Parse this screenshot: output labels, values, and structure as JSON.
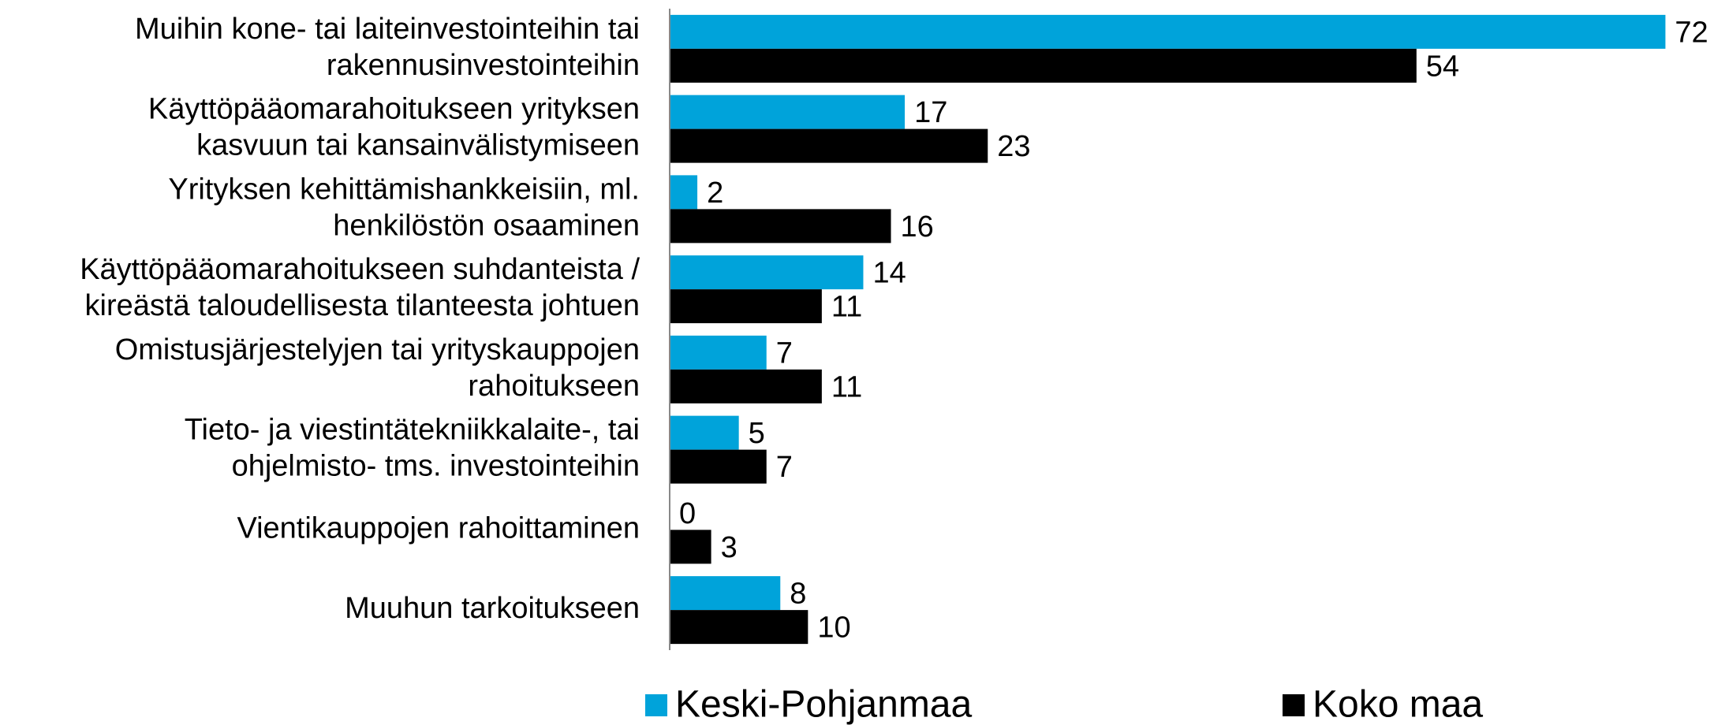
{
  "chart_data": {
    "type": "bar",
    "orientation": "horizontal",
    "categories": [
      [
        "Muihin kone- tai laiteinvestointeihin tai",
        "rakennusinvestointeihin"
      ],
      [
        "Käyttöpääomarahoitukseen yrityksen",
        "kasvuun tai kansainvälistymiseen"
      ],
      [
        "Yrityksen kehittämishankkeisiin, ml.",
        "henkilöstön osaaminen"
      ],
      [
        "Käyttöpääomarahoitukseen suhdanteista /",
        "kireästä taloudellisesta tilanteesta johtuen"
      ],
      [
        "Omistusjärjestelyjen tai yrityskauppojen",
        "rahoitukseen"
      ],
      [
        "Tieto- ja viestintätekniikkalaite-, tai",
        "ohjelmisto- tms. investointeihin"
      ],
      [
        "Vientikauppojen rahoittaminen"
      ],
      [
        "Muuhun tarkoitukseen"
      ]
    ],
    "series": [
      {
        "name": "Keski-Pohjanmaa",
        "color": "#00a3da",
        "values": [
          72,
          17,
          2,
          14,
          7,
          5,
          0,
          8
        ]
      },
      {
        "name": "Koko maa",
        "color": "#000000",
        "values": [
          54,
          23,
          16,
          11,
          11,
          7,
          3,
          10
        ]
      }
    ],
    "xlim": [
      0,
      75
    ],
    "legend": "bottom"
  }
}
